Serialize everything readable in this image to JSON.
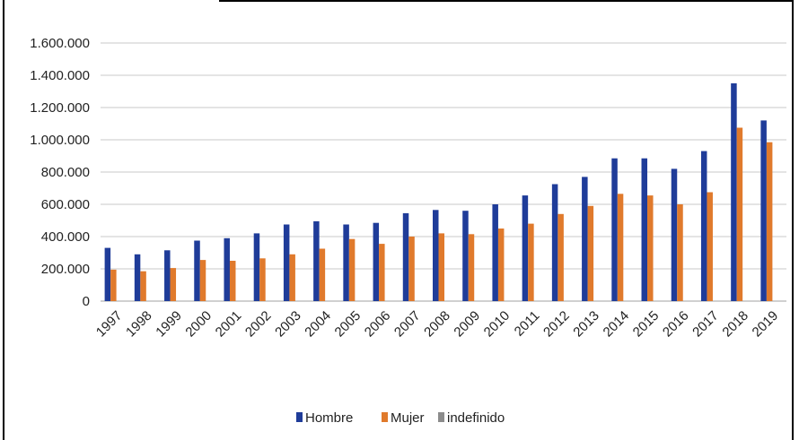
{
  "chart_data": {
    "type": "bar",
    "title": "",
    "xlabel": "",
    "ylabel": "",
    "categories": [
      "1997",
      "1998",
      "1999",
      "2000",
      "2001",
      "2002",
      "2003",
      "2004",
      "2005",
      "2006",
      "2007",
      "2008",
      "2009",
      "2010",
      "2011",
      "2012",
      "2013",
      "2014",
      "2015",
      "2016",
      "2017",
      "2018",
      "2019"
    ],
    "series": [
      {
        "name": "Hombre",
        "color": "#1f3c99",
        "values": [
          330000,
          290000,
          315000,
          375000,
          390000,
          420000,
          475000,
          495000,
          475000,
          485000,
          545000,
          565000,
          560000,
          600000,
          655000,
          725000,
          770000,
          885000,
          885000,
          820000,
          930000,
          1350000,
          1120000
        ]
      },
      {
        "name": "Mujer",
        "color": "#e07a2c",
        "values": [
          195000,
          185000,
          205000,
          255000,
          250000,
          265000,
          290000,
          325000,
          385000,
          355000,
          400000,
          420000,
          415000,
          450000,
          480000,
          540000,
          590000,
          665000,
          655000,
          600000,
          675000,
          1075000,
          985000
        ]
      },
      {
        "name": "indefinido",
        "color": "#8c8c8c",
        "values": [
          0,
          0,
          0,
          0,
          0,
          0,
          0,
          0,
          0,
          0,
          0,
          0,
          0,
          0,
          0,
          0,
          0,
          0,
          0,
          0,
          0,
          0,
          0
        ]
      }
    ],
    "ylim": [
      0,
      1600000
    ],
    "yticks": [
      "0",
      "200.000",
      "400.000",
      "600.000",
      "800.000",
      "1.000.000",
      "1.200.000",
      "1.400.000",
      "1.600.000"
    ],
    "grid": true,
    "legend": "bottom"
  }
}
